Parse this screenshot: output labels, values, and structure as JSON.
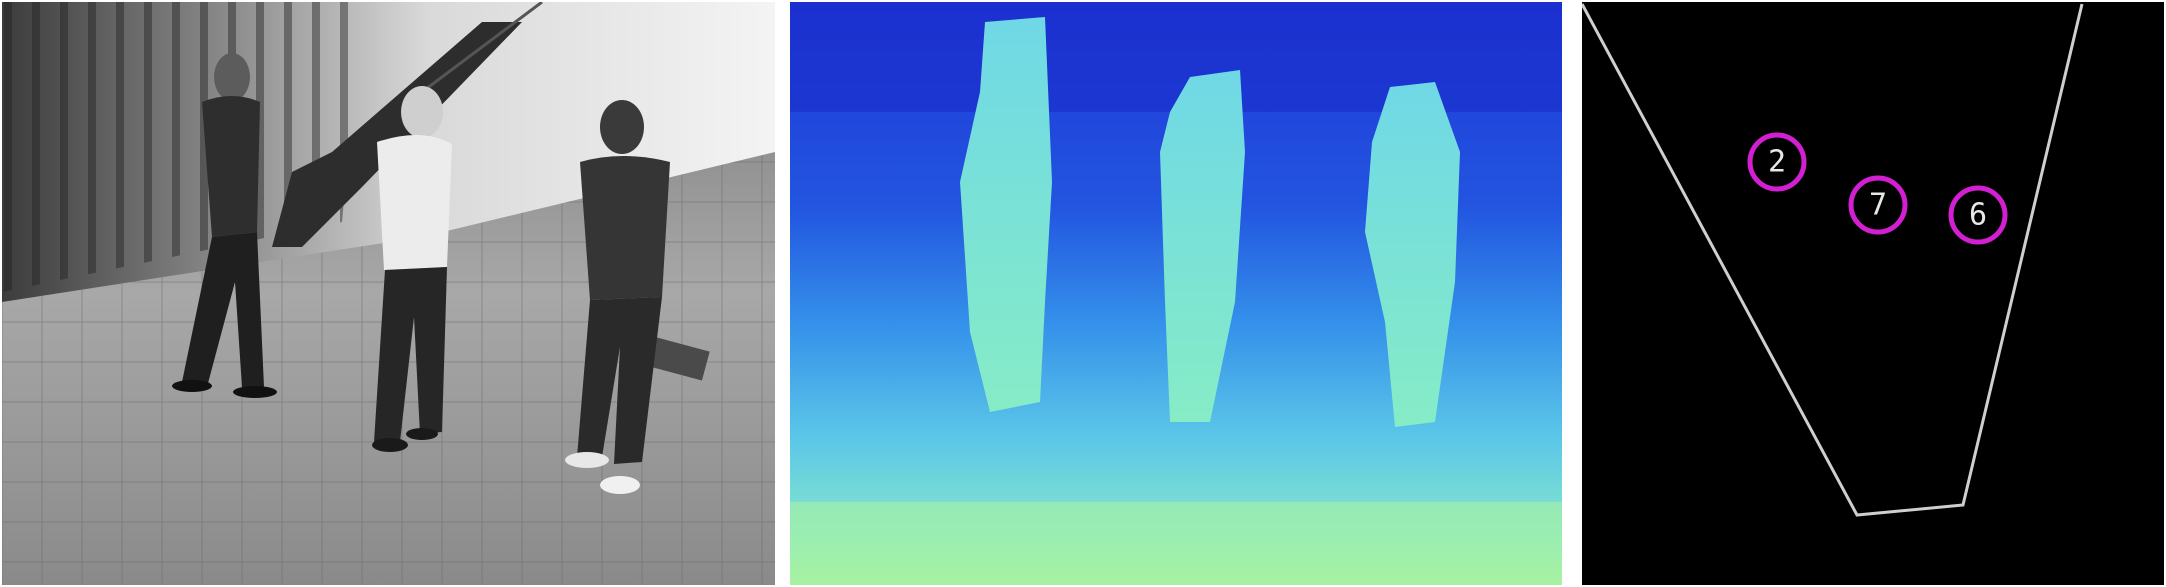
{
  "panels": [
    {
      "name": "grayscale-camera-view",
      "description_visible": false
    },
    {
      "name": "depth-map-view",
      "description_visible": false
    },
    {
      "name": "top-view-tracking",
      "description_visible": false
    }
  ],
  "colors": {
    "track_marker": "#d21fd2",
    "field_of_view_outline": "#cfcfcf",
    "top_view_background": "#000000",
    "depth_far": "#1a2fd6",
    "depth_mid": "#2f86e8",
    "depth_near": "#7ee6d8",
    "depth_floor": "#9af0a8"
  },
  "tracks": [
    {
      "id": "2"
    },
    {
      "id": "7"
    },
    {
      "id": "6"
    }
  ]
}
